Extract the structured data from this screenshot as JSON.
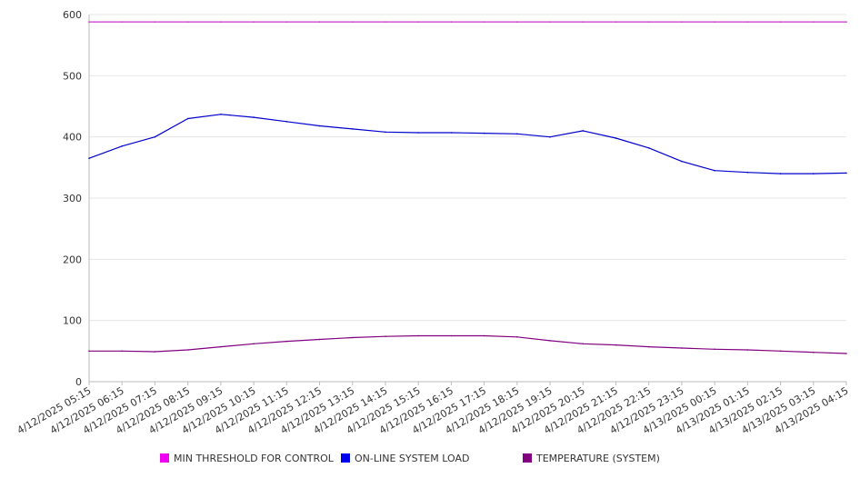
{
  "chart_data": {
    "type": "line",
    "title": "",
    "xlabel": "",
    "ylabel": "",
    "ylim": [
      0,
      600
    ],
    "yticks": [
      0,
      100,
      200,
      300,
      400,
      500,
      600
    ],
    "grid": true,
    "legend_position": "bottom",
    "categories": [
      "4/12/2025 05:15",
      "4/12/2025 06:15",
      "4/12/2025 07:15",
      "4/12/2025 08:15",
      "4/12/2025 09:15",
      "4/12/2025 10:15",
      "4/12/2025 11:15",
      "4/12/2025 12:15",
      "4/12/2025 13:15",
      "4/12/2025 14:15",
      "4/12/2025 15:15",
      "4/12/2025 16:15",
      "4/12/2025 17:15",
      "4/12/2025 18:15",
      "4/12/2025 19:15",
      "4/12/2025 20:15",
      "4/12/2025 21:15",
      "4/12/2025 22:15",
      "4/12/2025 23:15",
      "4/13/2025 00:15",
      "4/13/2025 01:15",
      "4/13/2025 02:15",
      "4/13/2025 03:15",
      "4/13/2025 04:15"
    ],
    "series": [
      {
        "name": "MIN THRESHOLD FOR CONTROL",
        "color": "#cc33cc",
        "values": [
          588,
          588,
          588,
          588,
          588,
          588,
          588,
          588,
          588,
          588,
          588,
          588,
          588,
          588,
          588,
          588,
          588,
          588,
          588,
          588,
          588,
          588,
          588,
          588
        ]
      },
      {
        "name": "ON-LINE SYSTEM LOAD",
        "color": "#0000cc",
        "values": [
          365,
          385,
          400,
          430,
          437,
          432,
          425,
          418,
          413,
          408,
          407,
          407,
          406,
          405,
          400,
          410,
          398,
          382,
          360,
          345,
          342,
          340,
          340,
          341
        ]
      },
      {
        "name": "TEMPERATURE (SYSTEM)",
        "color": "#800080",
        "values": [
          50,
          50,
          49,
          52,
          57,
          62,
          66,
          69,
          72,
          74,
          75,
          75,
          75,
          73,
          67,
          62,
          60,
          57,
          55,
          53,
          52,
          50,
          48,
          46
        ]
      }
    ]
  },
  "legend": {
    "swatches": {
      "threshold": "#ee00ee",
      "load": "#0000ee",
      "temperature": "#800080"
    }
  }
}
